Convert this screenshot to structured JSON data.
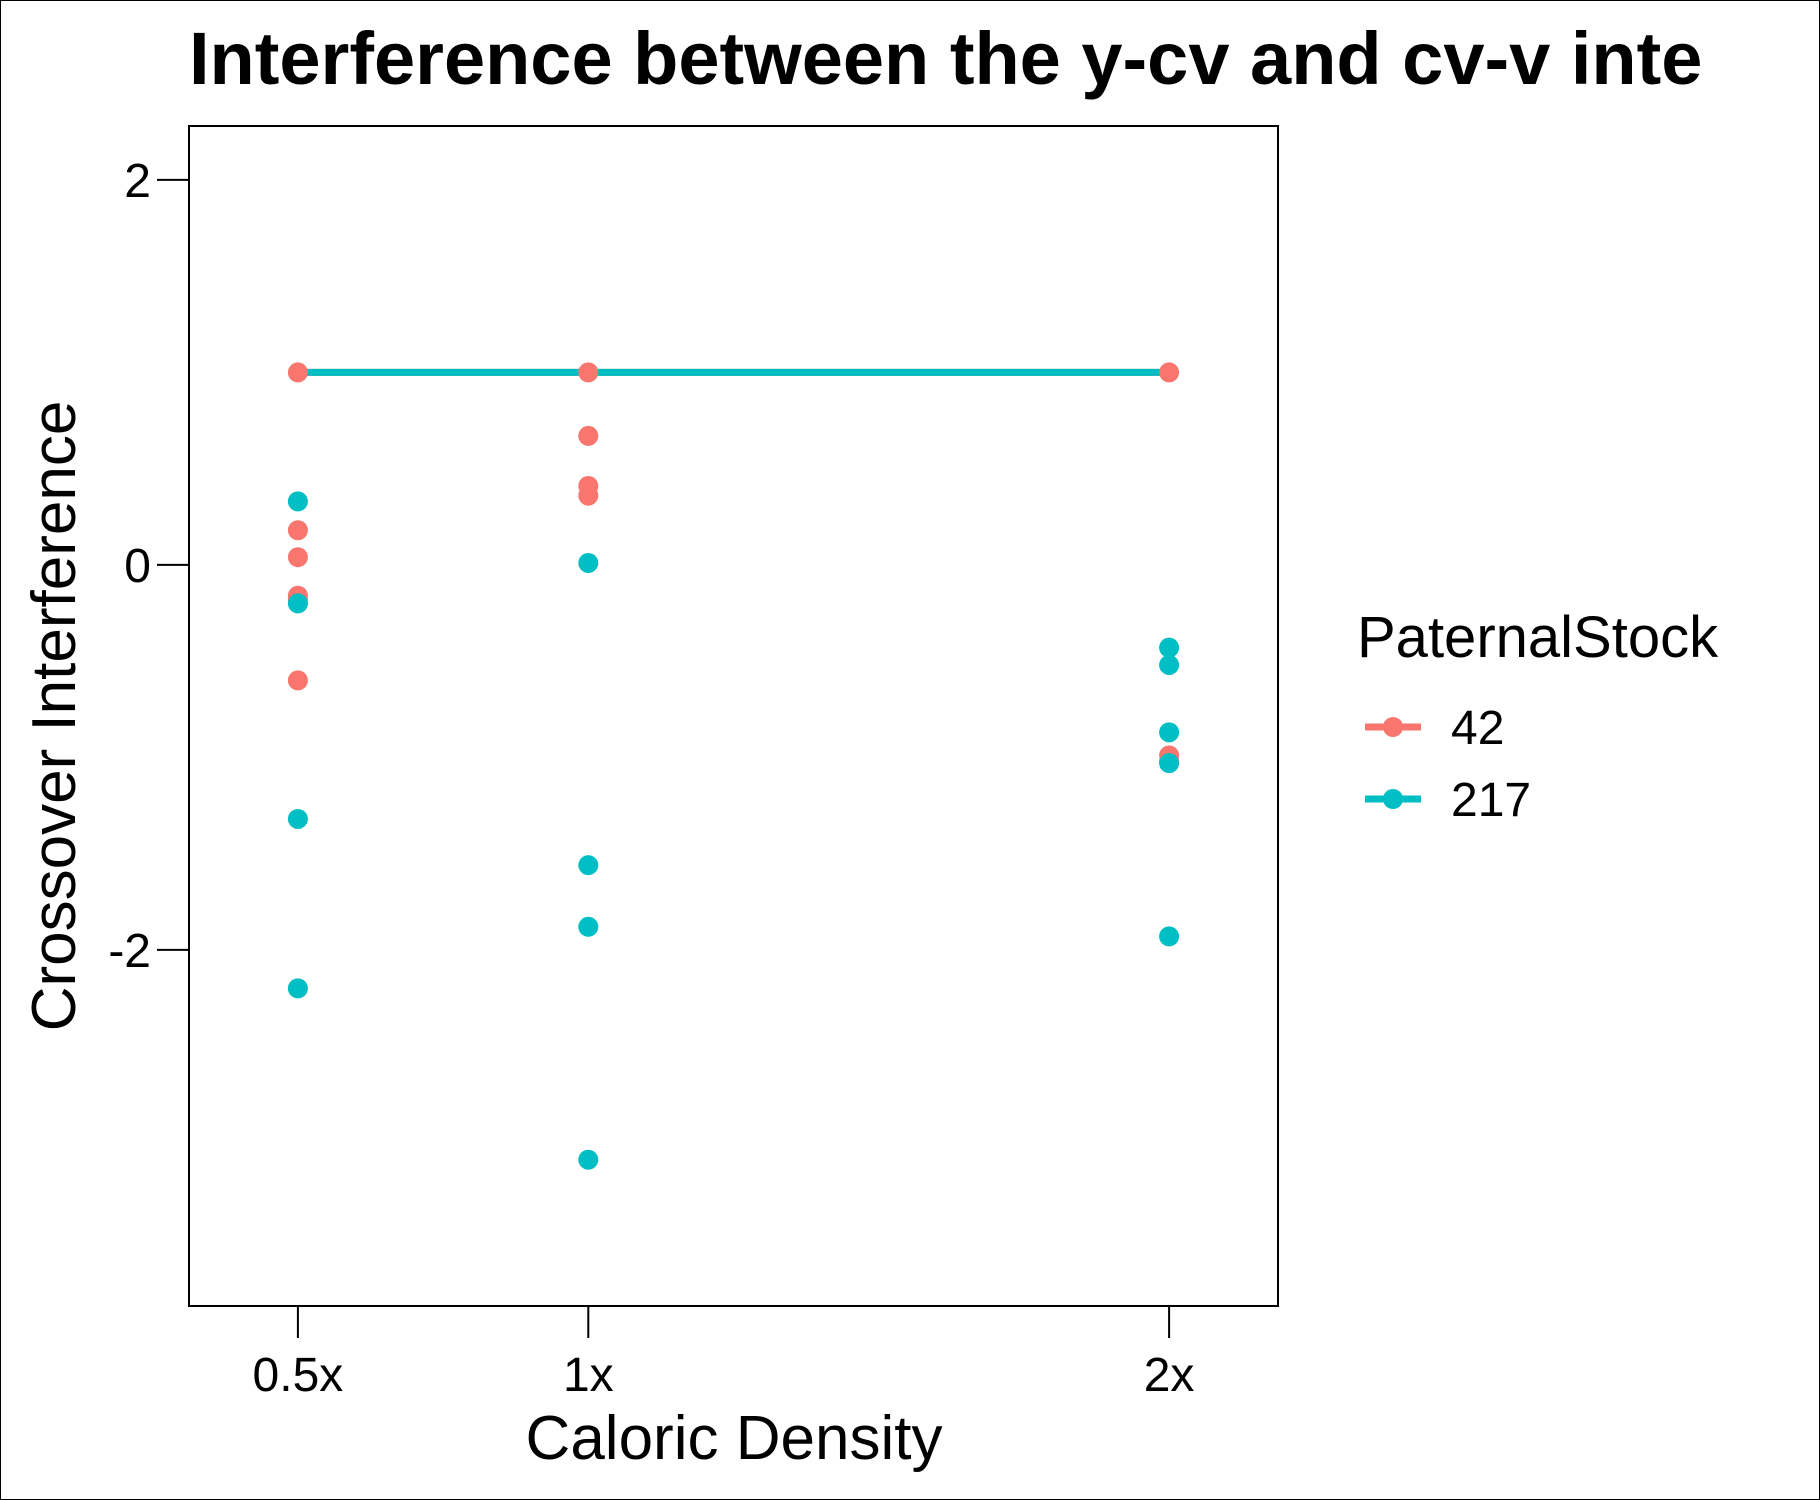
{
  "chart_data": {
    "type": "scatter",
    "title": "Interference between the y-cv and cv-v inte",
    "xlabel": "Caloric Density",
    "ylabel": "Crossover Interference",
    "categories": [
      "0.5x",
      "1x",
      "2x"
    ],
    "x_positions": [
      0.5,
      1,
      2
    ],
    "ylim": [
      -3.85,
      2.28
    ],
    "yticks": [
      2,
      0,
      -2
    ],
    "ytick_labels": [
      "2",
      "0",
      "-2"
    ],
    "grid": false,
    "legend": {
      "title": "PaternalStock",
      "placement": "right",
      "entries": [
        "42",
        "217"
      ]
    },
    "series": [
      {
        "name": "42",
        "color": "#F8766D",
        "points": [
          {
            "x": "0.5x",
            "y": 1.0
          },
          {
            "x": "0.5x",
            "y": 0.18
          },
          {
            "x": "0.5x",
            "y": 0.04
          },
          {
            "x": "0.5x",
            "y": -0.16
          },
          {
            "x": "0.5x",
            "y": -0.18
          },
          {
            "x": "0.5x",
            "y": -0.6
          },
          {
            "x": "1x",
            "y": 1.0
          },
          {
            "x": "1x",
            "y": 0.67
          },
          {
            "x": "1x",
            "y": 0.41
          },
          {
            "x": "1x",
            "y": 0.36
          },
          {
            "x": "2x",
            "y": 1.0
          },
          {
            "x": "2x",
            "y": -0.99
          },
          {
            "x": "2x",
            "y": -1.02
          }
        ],
        "line": [
          {
            "x": "0.5x",
            "y": 1.0
          },
          {
            "x": "1x",
            "y": 1.0
          },
          {
            "x": "2x",
            "y": 1.0
          }
        ]
      },
      {
        "name": "217",
        "color": "#00BFC4",
        "points": [
          {
            "x": "0.5x",
            "y": 0.33
          },
          {
            "x": "0.5x",
            "y": -0.2
          },
          {
            "x": "0.5x",
            "y": -1.32
          },
          {
            "x": "0.5x",
            "y": -2.2
          },
          {
            "x": "1x",
            "y": 0.01
          },
          {
            "x": "1x",
            "y": -1.56
          },
          {
            "x": "1x",
            "y": -1.88
          },
          {
            "x": "1x",
            "y": -3.09
          },
          {
            "x": "2x",
            "y": -0.43
          },
          {
            "x": "2x",
            "y": -0.52
          },
          {
            "x": "2x",
            "y": -0.87
          },
          {
            "x": "2x",
            "y": -1.03
          },
          {
            "x": "2x",
            "y": -1.93
          }
        ],
        "line": [
          {
            "x": "0.5x",
            "y": 1.0
          },
          {
            "x": "1x",
            "y": 1.0
          },
          {
            "x": "2x",
            "y": 1.0
          }
        ]
      }
    ]
  }
}
